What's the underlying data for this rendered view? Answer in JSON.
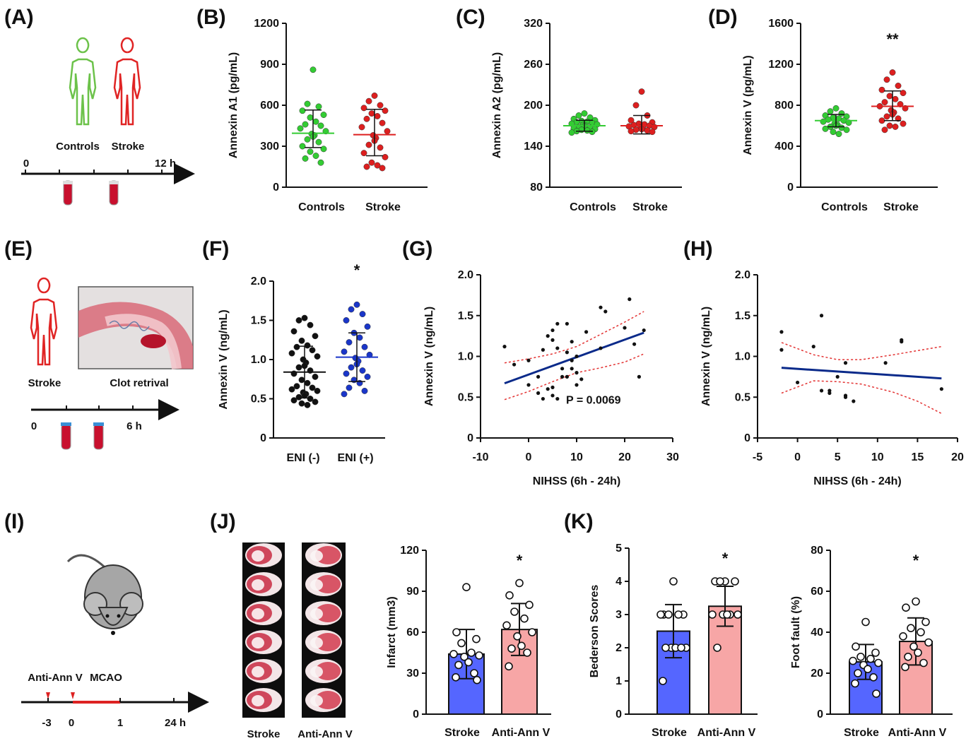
{
  "panel_labels": {
    "A": "(A)",
    "B": "(B)",
    "C": "(C)",
    "D": "(D)",
    "E": "(E)",
    "F": "(F)",
    "G": "(G)",
    "H": "(H)",
    "I": "(I)",
    "J": "(J)",
    "K": "(K)"
  },
  "panel_a": {
    "controls": "Controls",
    "stroke": "Stroke",
    "t0": "0",
    "t12": "12 h",
    "colors": {
      "controls": "#6cc24a",
      "stroke": "#e02424",
      "tube": "#c8102e"
    }
  },
  "panel_e": {
    "stroke": "Stroke",
    "clot": "Clot retrival",
    "t0": "0",
    "t6": "6 h"
  },
  "panel_i": {
    "anti": "Anti-Ann V",
    "mcao": "MCAO",
    "t_m3": "-3",
    "t0": "0",
    "t1": "1",
    "t24": "24 h"
  },
  "panel_j": {
    "stroke": "Stroke",
    "anti": "Anti-Ann V"
  },
  "colors": {
    "green": "#33cc33",
    "red": "#dd1f1f",
    "blue": "#1a36c9",
    "black": "#111111",
    "bar_blue": "#5566ff",
    "bar_pink": "#f7a6a6",
    "fit": "#0a2a8a",
    "ci": "#e33333"
  },
  "chart_data": [
    {
      "id": "B",
      "type": "scatter",
      "ylabel": "Annexin A1 (pg/mL)",
      "ylim": [
        0,
        1200
      ],
      "yticks": [
        "0",
        "300",
        "600",
        "900",
        "1200"
      ],
      "categories": [
        "Controls",
        "Stroke"
      ],
      "series": [
        {
          "name": "Controls",
          "mean": 395,
          "sd": [
            290,
            565
          ],
          "points": [
            860,
            610,
            590,
            560,
            530,
            510,
            480,
            460,
            450,
            430,
            410,
            390,
            380,
            370,
            350,
            330,
            300,
            280,
            260,
            230,
            210,
            180
          ]
        },
        {
          "name": "Stroke",
          "mean": 385,
          "sd": [
            230,
            570
          ],
          "points": [
            670,
            630,
            600,
            580,
            560,
            540,
            520,
            500,
            470,
            440,
            410,
            380,
            360,
            340,
            310,
            290,
            250,
            220,
            180,
            160,
            150,
            140
          ]
        }
      ],
      "sig": ""
    },
    {
      "id": "C",
      "type": "scatter",
      "ylabel": "Annexin A2 (pg/mL)",
      "ylim": [
        80,
        320
      ],
      "yticks": [
        "80",
        "140",
        "200",
        "260",
        "320"
      ],
      "categories": [
        "Controls",
        "Stroke"
      ],
      "series": [
        {
          "name": "Controls",
          "mean": 170,
          "sd": [
            162,
            178
          ],
          "points": [
            188,
            185,
            182,
            180,
            178,
            177,
            176,
            175,
            174,
            173,
            172,
            171,
            170,
            169,
            168,
            167,
            166,
            165,
            164,
            163,
            162,
            161,
            160
          ]
        },
        {
          "name": "Stroke",
          "mean": 170,
          "sd": [
            158,
            185
          ],
          "points": [
            220,
            200,
            185,
            178,
            175,
            173,
            172,
            171,
            170,
            169,
            168,
            167,
            166,
            165,
            164,
            163,
            162,
            161
          ]
        }
      ],
      "sig": ""
    },
    {
      "id": "D",
      "type": "scatter",
      "ylabel": "Annexin V (pg/mL)",
      "ylim": [
        0,
        1600
      ],
      "yticks": [
        "0",
        "400",
        "800",
        "1200",
        "1600"
      ],
      "categories": [
        "Controls",
        "Stroke"
      ],
      "series": [
        {
          "name": "Controls",
          "mean": 650,
          "sd": [
            590,
            710
          ],
          "points": [
            770,
            740,
            720,
            700,
            690,
            680,
            670,
            660,
            650,
            640,
            630,
            620,
            610,
            600,
            590,
            580,
            570,
            560,
            540,
            520
          ]
        },
        {
          "name": "Stroke",
          "mean": 790,
          "sd": [
            650,
            940
          ],
          "points": [
            1120,
            1050,
            990,
            950,
            920,
            890,
            860,
            830,
            810,
            790,
            770,
            750,
            730,
            710,
            690,
            670,
            650,
            620,
            600,
            590,
            560
          ]
        }
      ],
      "sig": "**"
    },
    {
      "id": "F",
      "type": "scatter",
      "ylabel": "Annexin V (ng/mL)",
      "ylim": [
        0,
        2.0
      ],
      "yticks": [
        "0",
        "0.5",
        "1.0",
        "1.5",
        "2.0"
      ],
      "categories": [
        "ENI (-)",
        "ENI (+)"
      ],
      "series": [
        {
          "name": "ENI (-)",
          "mean": 0.84,
          "sd": [
            0.51,
            1.17
          ],
          "points": [
            1.53,
            1.5,
            1.44,
            1.36,
            1.3,
            1.24,
            1.18,
            1.16,
            1.12,
            1.08,
            1.04,
            1.0,
            0.96,
            0.92,
            0.9,
            0.86,
            0.82,
            0.78,
            0.74,
            0.7,
            0.66,
            0.64,
            0.62,
            0.6,
            0.58,
            0.56,
            0.54,
            0.52,
            0.5,
            0.48,
            0.46,
            0.44,
            0.42
          ]
        },
        {
          "name": "ENI (+)",
          "mean": 1.03,
          "sd": [
            0.72,
            1.34
          ],
          "points": [
            1.7,
            1.64,
            1.58,
            1.5,
            1.42,
            1.34,
            1.28,
            1.22,
            1.16,
            1.1,
            1.06,
            1.02,
            0.98,
            0.94,
            0.9,
            0.86,
            0.82,
            0.78,
            0.74,
            0.7,
            0.64,
            0.6,
            0.56
          ]
        }
      ],
      "sig": "*"
    },
    {
      "id": "G",
      "type": "scatter",
      "xlabel": "NIHSS (6h - 24h)",
      "ylabel": "Annexin V (ng/mL)",
      "xlim": [
        -10,
        30
      ],
      "ylim": [
        0,
        2.0
      ],
      "xticks": [
        "-10",
        "0",
        "10",
        "20",
        "30"
      ],
      "yticks": [
        "0",
        "0.5",
        "1.0",
        "1.5",
        "2.0"
      ],
      "points": [
        [
          -5,
          1.12
        ],
        [
          -3,
          0.9
        ],
        [
          0,
          0.95
        ],
        [
          0,
          0.65
        ],
        [
          2,
          0.75
        ],
        [
          2,
          0.55
        ],
        [
          3,
          0.48
        ],
        [
          3,
          1.08
        ],
        [
          4,
          1.25
        ],
        [
          4,
          0.6
        ],
        [
          5,
          1.2
        ],
        [
          5,
          1.32
        ],
        [
          5,
          0.52
        ],
        [
          5,
          0.62
        ],
        [
          6,
          0.48
        ],
        [
          6,
          1.4
        ],
        [
          6,
          1.1
        ],
        [
          7,
          0.85
        ],
        [
          7,
          0.75
        ],
        [
          8,
          1.05
        ],
        [
          8,
          1.4
        ],
        [
          8,
          0.75
        ],
        [
          9,
          1.18
        ],
        [
          9,
          0.85
        ],
        [
          9,
          0.95
        ],
        [
          10,
          0.8
        ],
        [
          10,
          0.65
        ],
        [
          10,
          1.0
        ],
        [
          11,
          0.72
        ],
        [
          12,
          1.3
        ],
        [
          15,
          1.1
        ],
        [
          15,
          1.6
        ],
        [
          16,
          1.55
        ],
        [
          20,
          1.35
        ],
        [
          21,
          1.7
        ],
        [
          22,
          1.15
        ],
        [
          23,
          0.75
        ],
        [
          24,
          1.32
        ]
      ],
      "fit": [
        [
          -5,
          0.67
        ],
        [
          24,
          1.29
        ]
      ],
      "ci_upper": [
        [
          -5,
          0.92
        ],
        [
          0,
          0.97
        ],
        [
          5,
          1.03
        ],
        [
          10,
          1.12
        ],
        [
          15,
          1.27
        ],
        [
          20,
          1.42
        ],
        [
          24,
          1.55
        ]
      ],
      "ci_lower": [
        [
          -5,
          0.47
        ],
        [
          0,
          0.57
        ],
        [
          5,
          0.69
        ],
        [
          10,
          0.8
        ],
        [
          15,
          0.86
        ],
        [
          20,
          0.93
        ],
        [
          24,
          1.03
        ]
      ],
      "annotation": "P = 0.0069"
    },
    {
      "id": "H",
      "type": "scatter",
      "xlabel": "NIHSS (6h - 24h)",
      "ylabel": "Annexin V (ng/mL)",
      "xlim": [
        -5,
        20
      ],
      "ylim": [
        0,
        2.0
      ],
      "xticks": [
        "-5",
        "0",
        "5",
        "10",
        "15",
        "20"
      ],
      "yticks": [
        "0",
        "0.5",
        "1.0",
        "1.5",
        "2.0"
      ],
      "points": [
        [
          -2,
          1.3
        ],
        [
          -2,
          1.08
        ],
        [
          0,
          0.68
        ],
        [
          2,
          1.12
        ],
        [
          3,
          1.5
        ],
        [
          3,
          0.58
        ],
        [
          4,
          0.55
        ],
        [
          4,
          0.58
        ],
        [
          5,
          0.75
        ],
        [
          6,
          0.52
        ],
        [
          6,
          0.5
        ],
        [
          6,
          0.92
        ],
        [
          7,
          0.45
        ],
        [
          11,
          0.92
        ],
        [
          13,
          1.18
        ],
        [
          13,
          1.2
        ],
        [
          18,
          0.6
        ]
      ],
      "fit": [
        [
          -2,
          0.86
        ],
        [
          18,
          0.73
        ]
      ],
      "ci_upper": [
        [
          -2,
          1.17
        ],
        [
          2,
          1.02
        ],
        [
          5,
          0.96
        ],
        [
          8,
          0.96
        ],
        [
          12,
          1.02
        ],
        [
          15,
          1.07
        ],
        [
          18,
          1.12
        ]
      ],
      "ci_lower": [
        [
          -2,
          0.55
        ],
        [
          2,
          0.7
        ],
        [
          5,
          0.69
        ],
        [
          8,
          0.66
        ],
        [
          12,
          0.56
        ],
        [
          15,
          0.45
        ],
        [
          18,
          0.3
        ]
      ]
    },
    {
      "id": "J",
      "type": "bar",
      "ylabel": "Infarct (mm3)",
      "ylim": [
        0,
        120
      ],
      "yticks": [
        "0",
        "30",
        "60",
        "90",
        "120"
      ],
      "categories": [
        "Stroke",
        "Anti-Ann V"
      ],
      "values": [
        44,
        62
      ],
      "err": [
        18,
        19
      ],
      "points": [
        [
          93,
          60,
          55,
          52,
          45,
          44,
          43,
          42,
          38,
          36,
          30,
          27,
          25
        ],
        [
          96,
          87,
          80,
          75,
          70,
          65,
          60,
          57,
          50,
          48,
          45,
          35
        ]
      ],
      "sig": "*"
    },
    {
      "id": "K1",
      "type": "bar",
      "ylabel": "Bederson Scores",
      "ylim": [
        0,
        5
      ],
      "yticks": [
        "0",
        "1",
        "2",
        "3",
        "4",
        "5"
      ],
      "categories": [
        "Stroke",
        "Anti-Ann V"
      ],
      "values": [
        2.5,
        3.25
      ],
      "err": [
        0.8,
        0.6
      ],
      "points": [
        [
          4,
          3,
          3,
          3,
          3,
          3,
          2,
          2,
          2,
          2,
          2,
          1
        ],
        [
          4,
          4,
          4,
          4,
          3,
          3,
          3,
          3,
          3,
          2
        ]
      ],
      "sig": "*"
    },
    {
      "id": "K2",
      "type": "bar",
      "ylabel": "Foot fault (%)",
      "ylim": [
        0,
        80
      ],
      "yticks": [
        "0",
        "20",
        "40",
        "60",
        "80"
      ],
      "categories": [
        "Stroke",
        "Anti-Ann V"
      ],
      "values": [
        25.5,
        35.5
      ],
      "err": [
        8.5,
        11.5
      ],
      "points": [
        [
          45,
          33,
          30,
          28,
          27,
          26,
          25,
          24,
          22,
          20,
          18,
          15,
          10
        ],
        [
          55,
          52,
          45,
          42,
          40,
          38,
          35,
          33,
          30,
          28,
          25,
          23
        ]
      ],
      "sig": "*"
    }
  ]
}
